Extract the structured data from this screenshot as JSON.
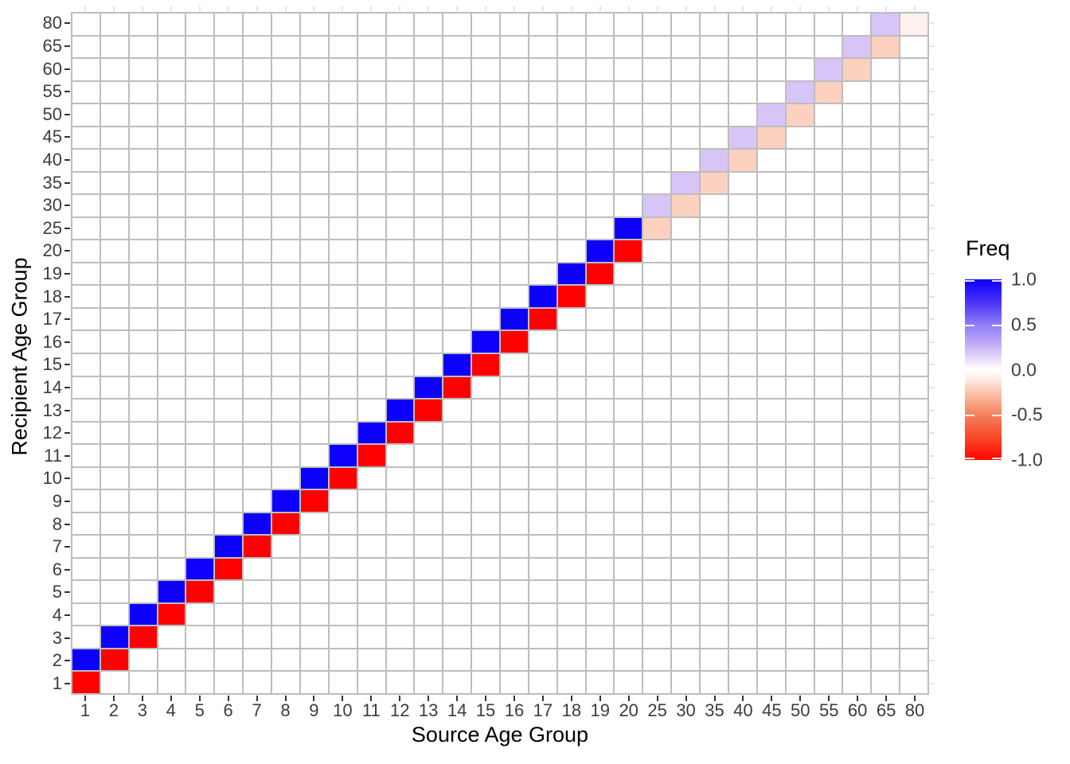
{
  "chart_data": {
    "type": "heatmap",
    "xlabel": "Source Age Group",
    "ylabel": "Recipient Age Group",
    "categories": [
      "1",
      "2",
      "3",
      "4",
      "5",
      "6",
      "7",
      "8",
      "9",
      "10",
      "11",
      "12",
      "13",
      "14",
      "15",
      "16",
      "17",
      "18",
      "19",
      "20",
      "25",
      "30",
      "35",
      "40",
      "45",
      "50",
      "55",
      "60",
      "65",
      "80"
    ],
    "legend": {
      "title": "Freq",
      "position": "right",
      "range": [
        -1.0,
        1.0
      ],
      "ticks": [
        {
          "label": "1.0",
          "value": 1.0
        },
        {
          "label": "0.5",
          "value": 0.5
        },
        {
          "label": "0.0",
          "value": 0.0
        },
        {
          "label": "-0.5",
          "value": -0.5
        },
        {
          "label": "-1.0",
          "value": -1.0
        }
      ]
    },
    "colors": {
      "full_blue": "#0D00FA",
      "full_red": "#FF0000",
      "light_purple": "#D8C5F7",
      "light_pink": "#FCD1C0",
      "palest_pink": "#FEF0EB",
      "grid": "#BDBDBD",
      "axis_text": "#3C3C3C",
      "panel_background": "#FFFFFF"
    },
    "grid": true,
    "cells": [
      {
        "s": "1",
        "r": "1",
        "v": -1,
        "c": "#FF0000"
      },
      {
        "s": "2",
        "r": "2",
        "v": -1,
        "c": "#FF0000"
      },
      {
        "s": "3",
        "r": "3",
        "v": -1,
        "c": "#FF0000"
      },
      {
        "s": "4",
        "r": "4",
        "v": -1,
        "c": "#FF0000"
      },
      {
        "s": "5",
        "r": "5",
        "v": -1,
        "c": "#FF0000"
      },
      {
        "s": "6",
        "r": "6",
        "v": -1,
        "c": "#FF0000"
      },
      {
        "s": "7",
        "r": "7",
        "v": -1,
        "c": "#FF0000"
      },
      {
        "s": "8",
        "r": "8",
        "v": -1,
        "c": "#FF0000"
      },
      {
        "s": "9",
        "r": "9",
        "v": -1,
        "c": "#FF0000"
      },
      {
        "s": "10",
        "r": "10",
        "v": -1,
        "c": "#FF0000"
      },
      {
        "s": "11",
        "r": "11",
        "v": -1,
        "c": "#FF0000"
      },
      {
        "s": "12",
        "r": "12",
        "v": -1,
        "c": "#FF0000"
      },
      {
        "s": "13",
        "r": "13",
        "v": -1,
        "c": "#FF0000"
      },
      {
        "s": "14",
        "r": "14",
        "v": -1,
        "c": "#FF0000"
      },
      {
        "s": "15",
        "r": "15",
        "v": -1,
        "c": "#FF0000"
      },
      {
        "s": "16",
        "r": "16",
        "v": -1,
        "c": "#FF0000"
      },
      {
        "s": "17",
        "r": "17",
        "v": -1,
        "c": "#FF0000"
      },
      {
        "s": "18",
        "r": "18",
        "v": -1,
        "c": "#FF0000"
      },
      {
        "s": "19",
        "r": "19",
        "v": -1,
        "c": "#FF0000"
      },
      {
        "s": "20",
        "r": "20",
        "v": -1,
        "c": "#FF0000"
      },
      {
        "s": "1",
        "r": "2",
        "v": 1,
        "c": "#0D00FA"
      },
      {
        "s": "2",
        "r": "3",
        "v": 1,
        "c": "#0D00FA"
      },
      {
        "s": "3",
        "r": "4",
        "v": 1,
        "c": "#0D00FA"
      },
      {
        "s": "4",
        "r": "5",
        "v": 1,
        "c": "#0D00FA"
      },
      {
        "s": "5",
        "r": "6",
        "v": 1,
        "c": "#0D00FA"
      },
      {
        "s": "6",
        "r": "7",
        "v": 1,
        "c": "#0D00FA"
      },
      {
        "s": "7",
        "r": "8",
        "v": 1,
        "c": "#0D00FA"
      },
      {
        "s": "8",
        "r": "9",
        "v": 1,
        "c": "#0D00FA"
      },
      {
        "s": "9",
        "r": "10",
        "v": 1,
        "c": "#0D00FA"
      },
      {
        "s": "10",
        "r": "11",
        "v": 1,
        "c": "#0D00FA"
      },
      {
        "s": "11",
        "r": "12",
        "v": 1,
        "c": "#0D00FA"
      },
      {
        "s": "12",
        "r": "13",
        "v": 1,
        "c": "#0D00FA"
      },
      {
        "s": "13",
        "r": "14",
        "v": 1,
        "c": "#0D00FA"
      },
      {
        "s": "14",
        "r": "15",
        "v": 1,
        "c": "#0D00FA"
      },
      {
        "s": "15",
        "r": "16",
        "v": 1,
        "c": "#0D00FA"
      },
      {
        "s": "16",
        "r": "17",
        "v": 1,
        "c": "#0D00FA"
      },
      {
        "s": "17",
        "r": "18",
        "v": 1,
        "c": "#0D00FA"
      },
      {
        "s": "18",
        "r": "19",
        "v": 1,
        "c": "#0D00FA"
      },
      {
        "s": "19",
        "r": "20",
        "v": 1,
        "c": "#0D00FA"
      },
      {
        "s": "20",
        "r": "25",
        "v": 1,
        "c": "#0D00FA"
      },
      {
        "s": "25",
        "r": "25",
        "v": -0.2,
        "c": "#FCD1C0"
      },
      {
        "s": "30",
        "r": "30",
        "v": -0.2,
        "c": "#FCD1C0"
      },
      {
        "s": "35",
        "r": "35",
        "v": -0.2,
        "c": "#FCD1C0"
      },
      {
        "s": "40",
        "r": "40",
        "v": -0.2,
        "c": "#FCD1C0"
      },
      {
        "s": "45",
        "r": "45",
        "v": -0.2,
        "c": "#FCD1C0"
      },
      {
        "s": "50",
        "r": "50",
        "v": -0.2,
        "c": "#FCD1C0"
      },
      {
        "s": "55",
        "r": "55",
        "v": -0.2,
        "c": "#FCD1C0"
      },
      {
        "s": "60",
        "r": "60",
        "v": -0.2,
        "c": "#FCD1C0"
      },
      {
        "s": "65",
        "r": "65",
        "v": -0.2,
        "c": "#FCD1C0"
      },
      {
        "s": "25",
        "r": "30",
        "v": 0.2,
        "c": "#D8C5F7"
      },
      {
        "s": "30",
        "r": "35",
        "v": 0.2,
        "c": "#D8C5F7"
      },
      {
        "s": "35",
        "r": "40",
        "v": 0.2,
        "c": "#D8C5F7"
      },
      {
        "s": "40",
        "r": "45",
        "v": 0.2,
        "c": "#D8C5F7"
      },
      {
        "s": "45",
        "r": "50",
        "v": 0.2,
        "c": "#D8C5F7"
      },
      {
        "s": "50",
        "r": "55",
        "v": 0.2,
        "c": "#D8C5F7"
      },
      {
        "s": "55",
        "r": "60",
        "v": 0.2,
        "c": "#D8C5F7"
      },
      {
        "s": "60",
        "r": "65",
        "v": 0.2,
        "c": "#D8C5F7"
      },
      {
        "s": "65",
        "r": "80",
        "v": 0.2,
        "c": "#D8C5F7"
      },
      {
        "s": "80",
        "r": "80",
        "v": -0.07,
        "c": "#FEF0EB"
      }
    ]
  }
}
